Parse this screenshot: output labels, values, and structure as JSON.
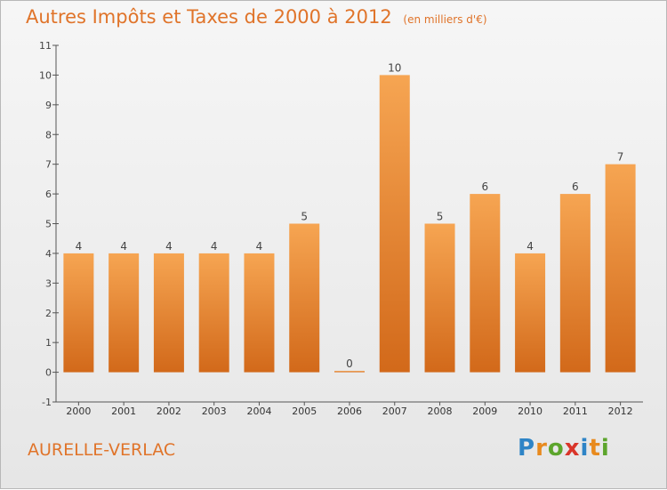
{
  "header": {
    "title": "Autres Impôts et Taxes de 2000 à 2012",
    "subtitle": "(en milliers d'€)"
  },
  "footer": {
    "commune": "AURELLE-VERLAC",
    "logo_letters": [
      "P",
      "r",
      "o",
      "x",
      "i",
      "t",
      "i"
    ],
    "logo_colors": [
      "#2e84c6",
      "#e88a1e",
      "#5ca52c",
      "#d9352a",
      "#2e84c6",
      "#e88a1e",
      "#5ca52c"
    ]
  },
  "chart_data": {
    "type": "bar",
    "title": "Autres Impôts et Taxes de 2000 à 2012",
    "subtitle": "(en milliers d'€)",
    "categories": [
      "2000",
      "2001",
      "2002",
      "2003",
      "2004",
      "2005",
      "2006",
      "2007",
      "2008",
      "2009",
      "2010",
      "2011",
      "2012"
    ],
    "values": [
      4,
      4,
      4,
      4,
      4,
      5,
      0,
      10,
      5,
      6,
      4,
      6,
      7
    ],
    "data_labels": [
      "4",
      "4",
      "4",
      "4",
      "4",
      "5",
      "0",
      "10",
      "5",
      "6",
      "4",
      "6",
      "7"
    ],
    "yticks": [
      "-1",
      "0",
      "1",
      "2",
      "3",
      "4",
      "5",
      "6",
      "7",
      "8",
      "9",
      "10",
      "11"
    ],
    "ylim": [
      -1,
      11
    ],
    "grid": false,
    "colors": {
      "bar_top": "#f6a552",
      "bar_bottom": "#d2691a",
      "text": "#e0742a",
      "axis": "#555555"
    }
  }
}
